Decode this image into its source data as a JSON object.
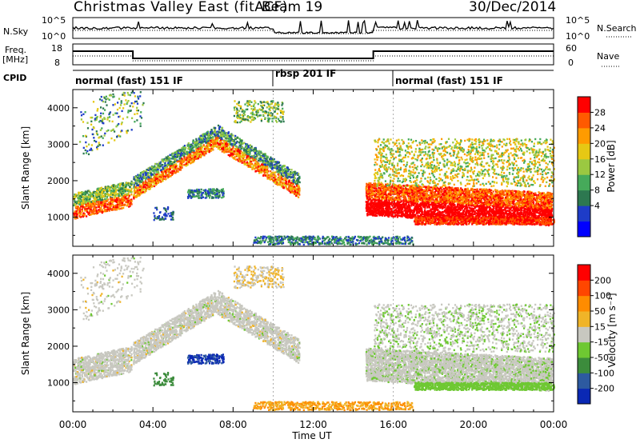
{
  "header": {
    "station": "Christmas Valley East (fitACF)",
    "beam": "Beam 19",
    "date": "30/Dec/2014"
  },
  "strips": {
    "nsky_label": "N.Sky",
    "nsky_ticks": [
      "10^5",
      "10^0"
    ],
    "nsearch_label": "N.Search",
    "nsearch_ticks": [
      "10^5",
      "10^0"
    ],
    "freq_label_1": "Freq.",
    "freq_label_2": "[MHz]",
    "freq_ticks": [
      "18",
      "8"
    ],
    "nave_label": "Nave",
    "nave_ticks": [
      "60",
      "0"
    ],
    "cpid_label": "CPID",
    "cpid_segments": [
      {
        "label": "normal (fast) 151 IF",
        "start_hour": 0
      },
      {
        "label": "rbsp 201 IF",
        "start_hour": 10
      },
      {
        "label": "normal (fast) 151 IF",
        "start_hour": 16
      }
    ]
  },
  "chart_data": [
    {
      "type": "heatmap",
      "name": "power-panel",
      "ylabel": "Slant Range [km]",
      "yticks": [
        "4000",
        "3000",
        "2000",
        "1000"
      ],
      "ylim": [
        200,
        4500
      ],
      "colorbar_label": "Power [dB]",
      "colorbar_ticks": [
        "28",
        "24",
        "20",
        "16",
        "12",
        "8",
        "4"
      ],
      "colorbar_colors": [
        "#0000ff",
        "#1e3cc8",
        "#2d7850",
        "#46aa5a",
        "#9bc841",
        "#e6c814",
        "#ff9b00",
        "#ff5a00",
        "#ff0000"
      ]
    },
    {
      "type": "heatmap",
      "name": "velocity-panel",
      "ylabel": "Slant Range [km]",
      "yticks": [
        "4000",
        "3000",
        "2000",
        "1000"
      ],
      "ylim": [
        200,
        4500
      ],
      "colorbar_label": "Velocity [m s⁻¹]",
      "colorbar_ticks": [
        "200",
        "100",
        "50",
        "15",
        "-15",
        "-50",
        "-100",
        "-200"
      ],
      "colorbar_colors": [
        "#0a28b4",
        "#2d5aa0",
        "#3c8c3c",
        "#6ec832",
        "#c8c8c0",
        "#f0b428",
        "#ff8c00",
        "#ff4600",
        "#ff0000"
      ]
    }
  ],
  "xaxis": {
    "label": "Time UT",
    "ticks": [
      "00:00",
      "04:00",
      "08:00",
      "12:00",
      "16:00",
      "20:00",
      "00:00"
    ]
  }
}
